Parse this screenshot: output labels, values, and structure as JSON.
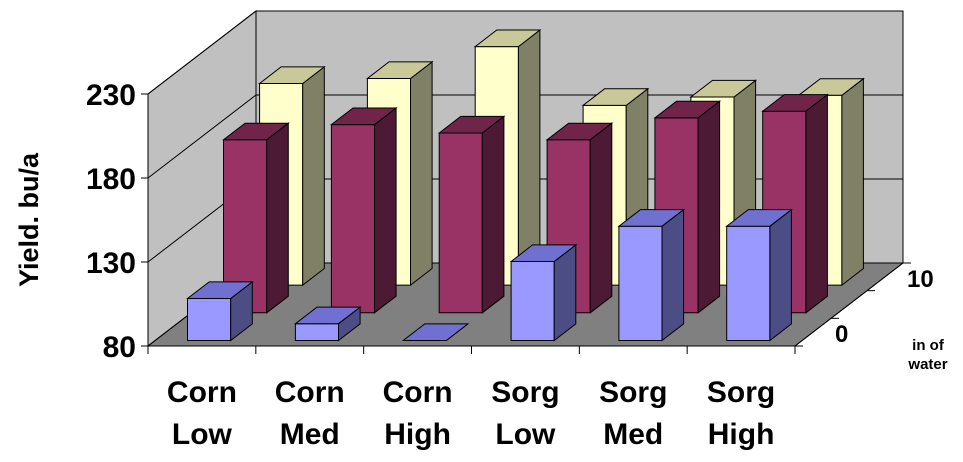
{
  "chart_data": {
    "type": "bar",
    "ylabel": "Yield. bu/a",
    "ylim": [
      80,
      230
    ],
    "yticks": [
      "80",
      "130",
      "180",
      "230"
    ],
    "categories": [
      [
        "Corn",
        "Low"
      ],
      [
        "Corn",
        "Med"
      ],
      [
        "Corn",
        "High"
      ],
      [
        "Sorg",
        "Low"
      ],
      [
        "Sorg",
        "Med"
      ],
      [
        "Sorg",
        "High"
      ]
    ],
    "depth_labels": [
      "0",
      "10"
    ],
    "depth_axis_title": [
      "in of",
      "water"
    ],
    "series": [
      {
        "values": [
          105,
          90,
          80,
          127,
          148,
          148
        ]
      },
      {
        "values": [
          183,
          192,
          187,
          183,
          196,
          200
        ]
      },
      {
        "values": [
          200,
          203,
          222,
          187,
          192,
          193
        ]
      }
    ],
    "colors": {
      "series": [
        "#9999ff",
        "#993366",
        "#ffffcc"
      ],
      "series_dark": [
        "#4d4d85",
        "#4d1a36",
        "#808066"
      ],
      "series_top": [
        "#7070d0",
        "#70244a",
        "#c8c898"
      ],
      "wall": "#c0c0c0",
      "floor": "#808080"
    }
  }
}
